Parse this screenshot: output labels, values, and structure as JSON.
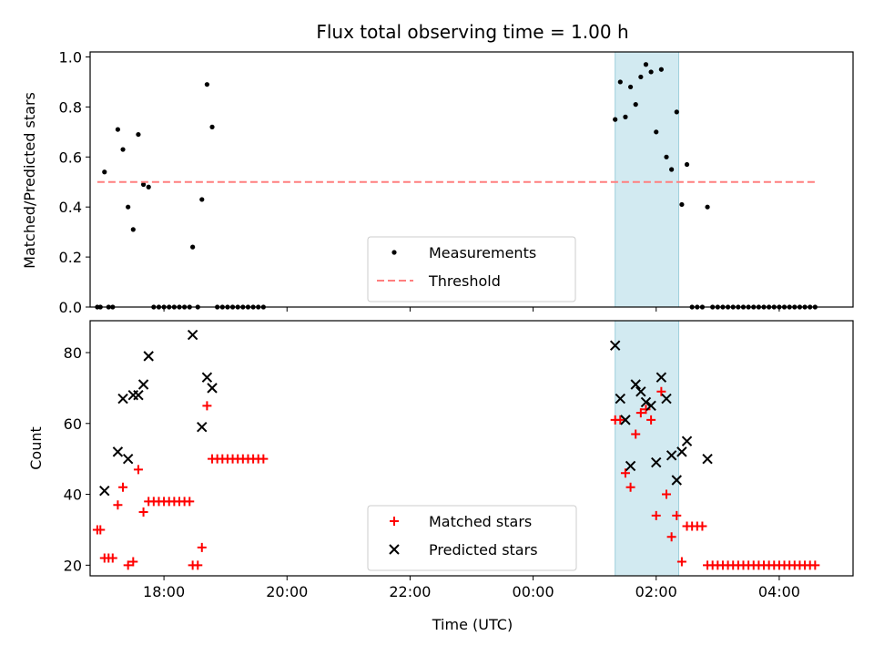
{
  "chart_data": [
    {
      "type": "scatter",
      "title": "Flux total observing time = 1.00 h",
      "ylabel": "Matched/Predicted stars",
      "xlabel": "",
      "x_axis": "time (UTC)",
      "xlim": [
        "16:48",
        "05:12"
      ],
      "ylim": [
        0,
        1.02
      ],
      "yticks": [
        "0.0",
        "0.2",
        "0.4",
        "0.6",
        "0.8",
        "1.0"
      ],
      "highlight": {
        "start": "01:20",
        "end": "02:22",
        "color": "#add8e6"
      },
      "legend_position": "lower center",
      "series": [
        {
          "name": "Measurements",
          "color": "#000000",
          "marker": "dot",
          "points": [
            [
              "16:55",
              0.0
            ],
            [
              "16:58",
              0.0
            ],
            [
              "17:02",
              0.54
            ],
            [
              "17:06",
              0.0
            ],
            [
              "17:10",
              0.0
            ],
            [
              "17:15",
              0.71
            ],
            [
              "17:20",
              0.63
            ],
            [
              "17:25",
              0.4
            ],
            [
              "17:30",
              0.31
            ],
            [
              "17:35",
              0.69
            ],
            [
              "17:40",
              0.49
            ],
            [
              "17:45",
              0.48
            ],
            [
              "17:50",
              0.0
            ],
            [
              "17:55",
              0.0
            ],
            [
              "18:00",
              0.0
            ],
            [
              "18:05",
              0.0
            ],
            [
              "18:10",
              0.0
            ],
            [
              "18:15",
              0.0
            ],
            [
              "18:20",
              0.0
            ],
            [
              "18:25",
              0.0
            ],
            [
              "18:28",
              0.24
            ],
            [
              "18:33",
              0.0
            ],
            [
              "18:37",
              0.43
            ],
            [
              "18:42",
              0.89
            ],
            [
              "18:47",
              0.72
            ],
            [
              "18:52",
              0.0
            ],
            [
              "18:57",
              0.0
            ],
            [
              "19:02",
              0.0
            ],
            [
              "19:07",
              0.0
            ],
            [
              "19:12",
              0.0
            ],
            [
              "19:17",
              0.0
            ],
            [
              "19:22",
              0.0
            ],
            [
              "19:27",
              0.0
            ],
            [
              "19:32",
              0.0
            ],
            [
              "19:37",
              0.0
            ],
            [
              "01:20",
              0.75
            ],
            [
              "01:25",
              0.9
            ],
            [
              "01:30",
              0.76
            ],
            [
              "01:35",
              0.88
            ],
            [
              "01:40",
              0.81
            ],
            [
              "01:45",
              0.92
            ],
            [
              "01:50",
              0.97
            ],
            [
              "01:55",
              0.94
            ],
            [
              "02:00",
              0.7
            ],
            [
              "02:05",
              0.95
            ],
            [
              "02:10",
              0.6
            ],
            [
              "02:15",
              0.55
            ],
            [
              "02:20",
              0.78
            ],
            [
              "02:25",
              0.41
            ],
            [
              "02:30",
              0.57
            ],
            [
              "02:35",
              0.0
            ],
            [
              "02:40",
              0.0
            ],
            [
              "02:45",
              0.0
            ],
            [
              "02:50",
              0.4
            ],
            [
              "02:55",
              0.0
            ],
            [
              "03:00",
              0.0
            ],
            [
              "03:05",
              0.0
            ],
            [
              "03:10",
              0.0
            ],
            [
              "03:15",
              0.0
            ],
            [
              "03:20",
              0.0
            ],
            [
              "03:25",
              0.0
            ],
            [
              "03:30",
              0.0
            ],
            [
              "03:35",
              0.0
            ],
            [
              "03:40",
              0.0
            ],
            [
              "03:45",
              0.0
            ],
            [
              "03:50",
              0.0
            ],
            [
              "03:55",
              0.0
            ],
            [
              "04:00",
              0.0
            ],
            [
              "04:05",
              0.0
            ],
            [
              "04:10",
              0.0
            ],
            [
              "04:15",
              0.0
            ],
            [
              "04:20",
              0.0
            ],
            [
              "04:25",
              0.0
            ],
            [
              "04:30",
              0.0
            ],
            [
              "04:35",
              0.0
            ]
          ]
        },
        {
          "name": "Threshold",
          "color": "#ff7f7f",
          "line": "dashed",
          "points": [
            [
              "16:55",
              0.5
            ],
            [
              "04:35",
              0.5
            ]
          ]
        }
      ]
    },
    {
      "type": "scatter",
      "title": "",
      "ylabel": "Count",
      "xlabel": "Time (UTC)",
      "x_axis": "time (UTC)",
      "xlim": [
        "16:48",
        "05:12"
      ],
      "ylim": [
        17,
        89
      ],
      "yticks": [
        "20",
        "40",
        "60",
        "80"
      ],
      "xticks": [
        "18:00",
        "20:00",
        "22:00",
        "00:00",
        "02:00",
        "04:00"
      ],
      "highlight": {
        "start": "01:20",
        "end": "02:22",
        "color": "#add8e6"
      },
      "legend_position": "lower center",
      "series": [
        {
          "name": "Matched stars",
          "color": "#ff0000",
          "marker": "plus",
          "points": [
            [
              "16:55",
              30
            ],
            [
              "16:58",
              30
            ],
            [
              "17:02",
              22
            ],
            [
              "17:06",
              22
            ],
            [
              "17:10",
              22
            ],
            [
              "17:15",
              37
            ],
            [
              "17:20",
              42
            ],
            [
              "17:25",
              20
            ],
            [
              "17:30",
              21
            ],
            [
              "17:35",
              47
            ],
            [
              "17:40",
              35
            ],
            [
              "17:45",
              38
            ],
            [
              "17:50",
              38
            ],
            [
              "17:55",
              38
            ],
            [
              "18:00",
              38
            ],
            [
              "18:05",
              38
            ],
            [
              "18:10",
              38
            ],
            [
              "18:15",
              38
            ],
            [
              "18:20",
              38
            ],
            [
              "18:25",
              38
            ],
            [
              "18:28",
              20
            ],
            [
              "18:33",
              20
            ],
            [
              "18:37",
              25
            ],
            [
              "18:42",
              65
            ],
            [
              "18:47",
              50
            ],
            [
              "18:52",
              50
            ],
            [
              "18:57",
              50
            ],
            [
              "19:02",
              50
            ],
            [
              "19:07",
              50
            ],
            [
              "19:12",
              50
            ],
            [
              "19:17",
              50
            ],
            [
              "19:22",
              50
            ],
            [
              "19:27",
              50
            ],
            [
              "19:32",
              50
            ],
            [
              "19:37",
              50
            ],
            [
              "01:20",
              61
            ],
            [
              "01:25",
              61
            ],
            [
              "01:30",
              46
            ],
            [
              "01:35",
              42
            ],
            [
              "01:40",
              57
            ],
            [
              "01:45",
              63
            ],
            [
              "01:50",
              64
            ],
            [
              "01:55",
              61
            ],
            [
              "02:00",
              34
            ],
            [
              "02:05",
              69
            ],
            [
              "02:10",
              40
            ],
            [
              "02:15",
              28
            ],
            [
              "02:20",
              34
            ],
            [
              "02:25",
              21
            ],
            [
              "02:30",
              31
            ],
            [
              "02:35",
              31
            ],
            [
              "02:40",
              31
            ],
            [
              "02:45",
              31
            ],
            [
              "02:50",
              20
            ],
            [
              "02:55",
              20
            ],
            [
              "03:00",
              20
            ],
            [
              "03:05",
              20
            ],
            [
              "03:10",
              20
            ],
            [
              "03:15",
              20
            ],
            [
              "03:20",
              20
            ],
            [
              "03:25",
              20
            ],
            [
              "03:30",
              20
            ],
            [
              "03:35",
              20
            ],
            [
              "03:40",
              20
            ],
            [
              "03:45",
              20
            ],
            [
              "03:50",
              20
            ],
            [
              "03:55",
              20
            ],
            [
              "04:00",
              20
            ],
            [
              "04:05",
              20
            ],
            [
              "04:10",
              20
            ],
            [
              "04:15",
              20
            ],
            [
              "04:20",
              20
            ],
            [
              "04:25",
              20
            ],
            [
              "04:30",
              20
            ],
            [
              "04:35",
              20
            ]
          ]
        },
        {
          "name": "Predicted stars",
          "color": "#000000",
          "marker": "x",
          "points": [
            [
              "17:02",
              41
            ],
            [
              "17:15",
              52
            ],
            [
              "17:20",
              67
            ],
            [
              "17:25",
              50
            ],
            [
              "17:30",
              68
            ],
            [
              "17:35",
              68
            ],
            [
              "17:40",
              71
            ],
            [
              "17:45",
              79
            ],
            [
              "18:28",
              85
            ],
            [
              "18:37",
              59
            ],
            [
              "18:42",
              73
            ],
            [
              "18:47",
              70
            ],
            [
              "01:20",
              82
            ],
            [
              "01:25",
              67
            ],
            [
              "01:30",
              61
            ],
            [
              "01:35",
              48
            ],
            [
              "01:40",
              71
            ],
            [
              "01:45",
              69
            ],
            [
              "01:50",
              66
            ],
            [
              "01:55",
              65
            ],
            [
              "02:00",
              49
            ],
            [
              "02:05",
              73
            ],
            [
              "02:10",
              67
            ],
            [
              "02:15",
              51
            ],
            [
              "02:20",
              44
            ],
            [
              "02:25",
              52
            ],
            [
              "02:30",
              55
            ],
            [
              "02:50",
              50
            ]
          ]
        }
      ]
    }
  ]
}
